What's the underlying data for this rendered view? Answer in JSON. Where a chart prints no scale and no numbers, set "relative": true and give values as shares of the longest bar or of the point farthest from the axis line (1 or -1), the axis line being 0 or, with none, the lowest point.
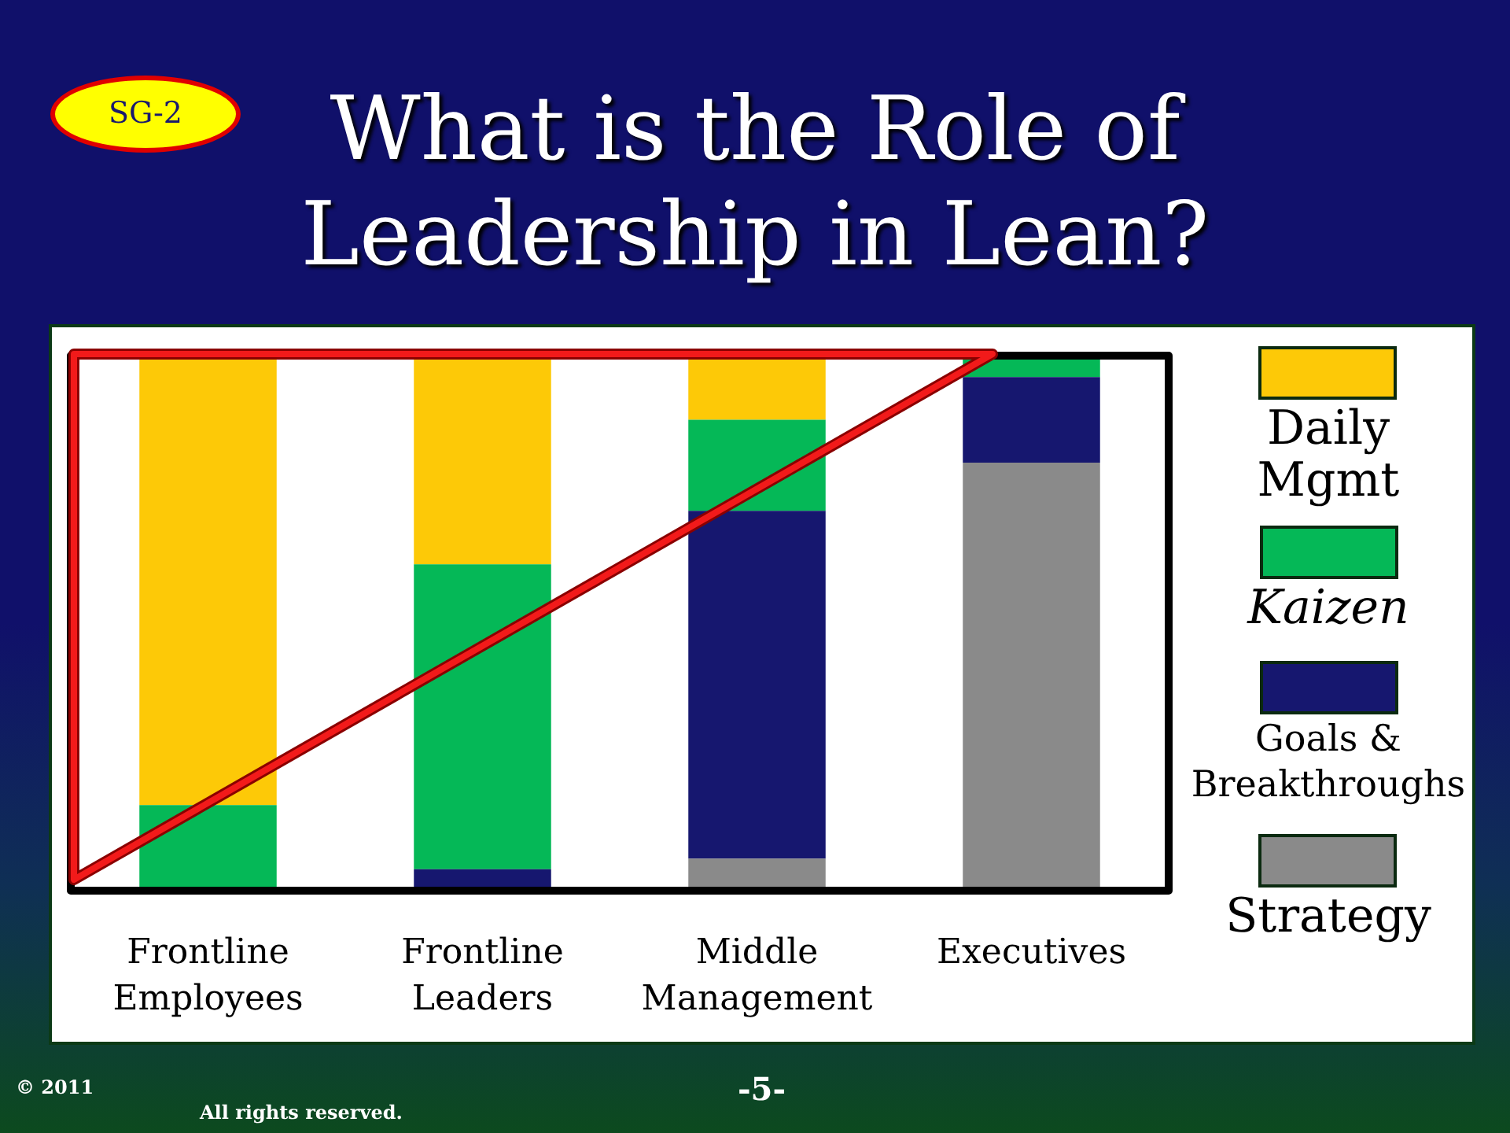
{
  "chart_data": {
    "type": "bar",
    "title": "What is the Role of Leadership in Lean?",
    "categories": [
      "Frontline Employees",
      "Frontline Leaders",
      "Middle Management",
      "Executives"
    ],
    "series": [
      {
        "name": "Strategy",
        "color": "#8a8a8a",
        "values": [
          0,
          0,
          0.06,
          0.8
        ]
      },
      {
        "name": "Goals & Breakthroughs",
        "color": "#16176f",
        "values": [
          0,
          0.04,
          0.65,
          0.16
        ]
      },
      {
        "name": "Kaizen",
        "color": "#05b857",
        "values": [
          0.16,
          0.57,
          0.17,
          0.04
        ]
      },
      {
        "name": "Daily Mgmt",
        "color": "#fdc907",
        "values": [
          0.84,
          0.39,
          0.12,
          0
        ]
      }
    ],
    "stacked": true,
    "relative": true,
    "legend": "right",
    "annotations": [
      "SG-2",
      "© 2011",
      "All rights reserved.",
      "-5-"
    ]
  }
}
